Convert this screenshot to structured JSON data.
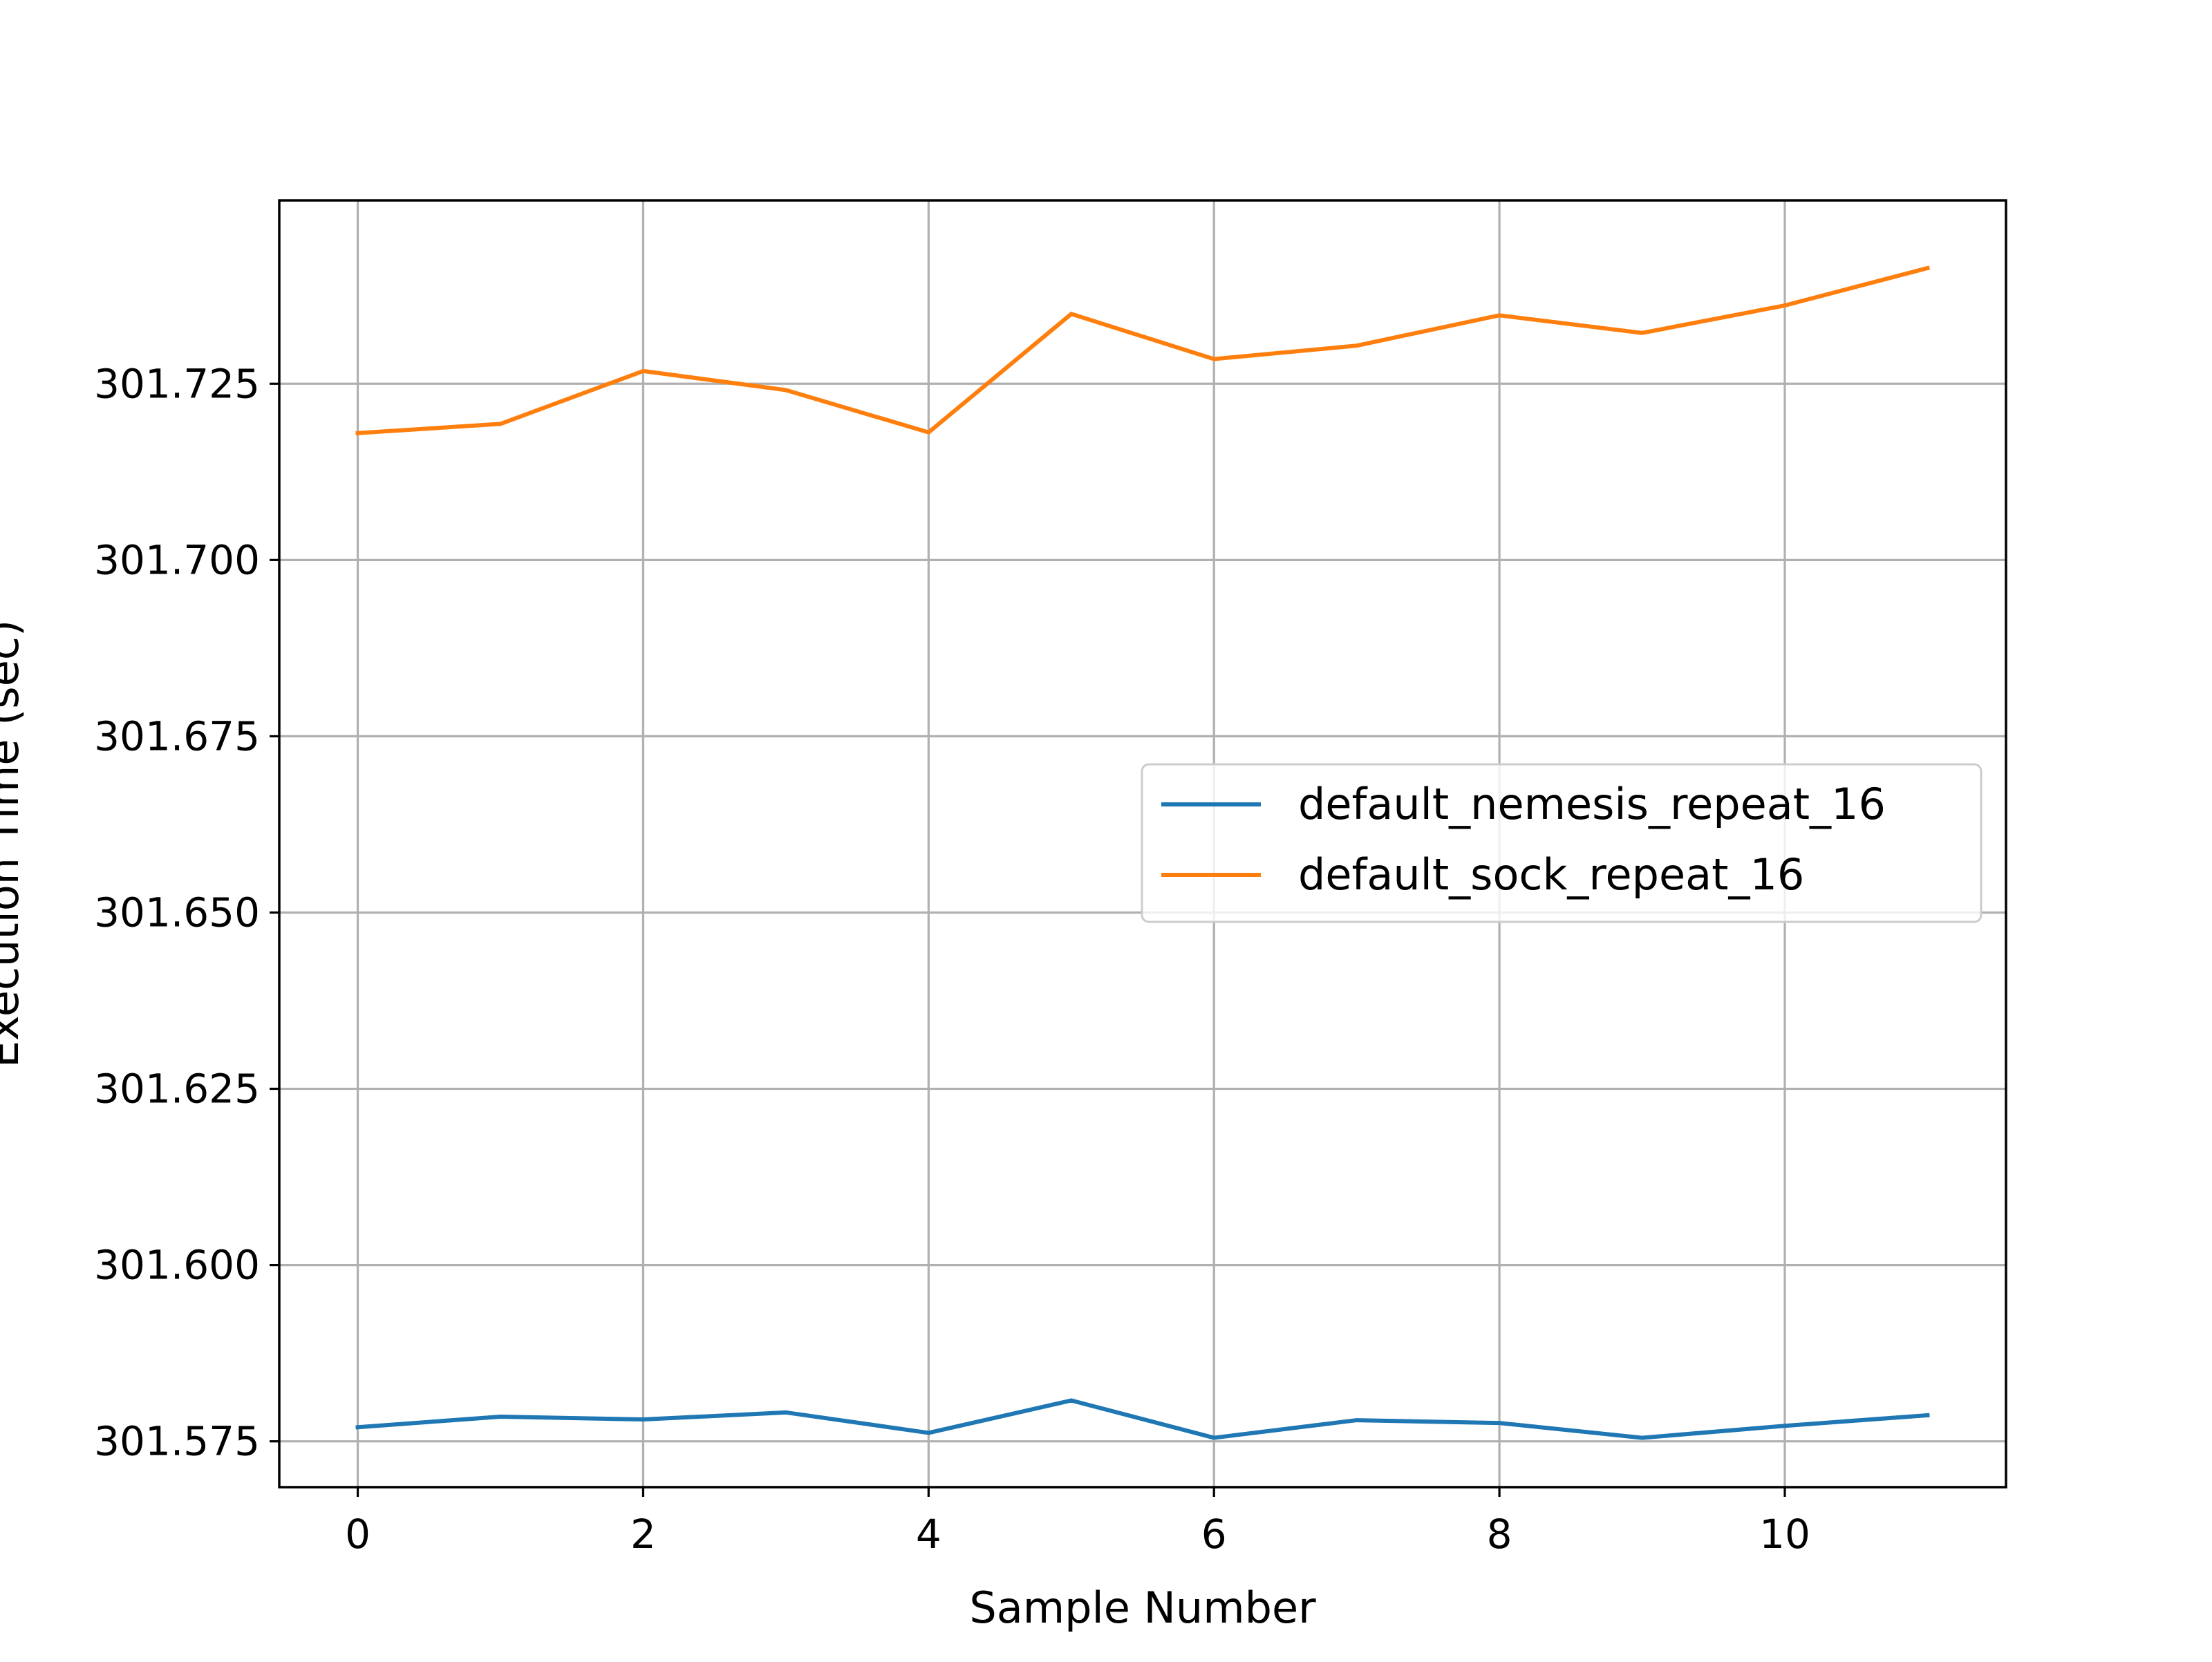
{
  "chart_data": {
    "type": "line",
    "title": "",
    "xlabel": "Sample Number",
    "ylabel": "Execution Time (sec)",
    "xlim": [
      -0.55,
      11.55
    ],
    "ylim": [
      301.5685,
      301.751
    ],
    "xticks": [
      0,
      2,
      4,
      6,
      8,
      10
    ],
    "xtick_labels": [
      "0",
      "2",
      "4",
      "6",
      "8",
      "10"
    ],
    "yticks": [
      301.575,
      301.6,
      301.625,
      301.65,
      301.675,
      301.7,
      301.725
    ],
    "ytick_labels": [
      "301.575",
      "301.600",
      "301.625",
      "301.650",
      "301.675",
      "301.700",
      "301.725"
    ],
    "grid": true,
    "legend_position": "center-right",
    "x": [
      0,
      1,
      2,
      3,
      4,
      5,
      6,
      7,
      8,
      9,
      10,
      11
    ],
    "series": [
      {
        "name": "default_nemesis_repeat_16",
        "color": "#1f77b4",
        "values": [
          301.577,
          301.5785,
          301.5781,
          301.5791,
          301.5762,
          301.5808,
          301.5755,
          301.578,
          301.5776,
          301.5755,
          301.5772,
          301.5787
        ]
      },
      {
        "name": "default_sock_repeat_16",
        "color": "#ff7f0e",
        "values": [
          301.718,
          301.7193,
          301.7268,
          301.7241,
          301.7181,
          301.7349,
          301.7285,
          301.7304,
          301.7347,
          301.7322,
          301.7361,
          301.7414
        ]
      }
    ]
  }
}
